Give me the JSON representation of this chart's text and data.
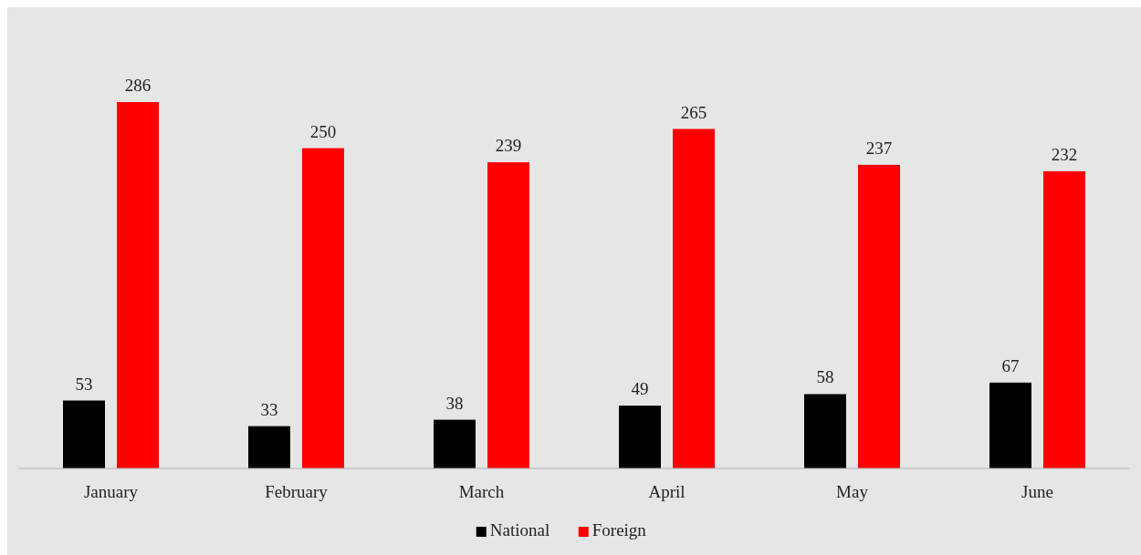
{
  "chart_data": {
    "type": "bar",
    "categories": [
      "January",
      "February",
      "March",
      "April",
      "May",
      "June"
    ],
    "series": [
      {
        "name": "National",
        "color": "#000000",
        "values": [
          53,
          33,
          38,
          49,
          58,
          67
        ]
      },
      {
        "name": "Foreign",
        "color": "#ff0000",
        "values": [
          286,
          250,
          239,
          265,
          237,
          232
        ]
      }
    ],
    "data_labels": true,
    "legend": "bottom"
  }
}
